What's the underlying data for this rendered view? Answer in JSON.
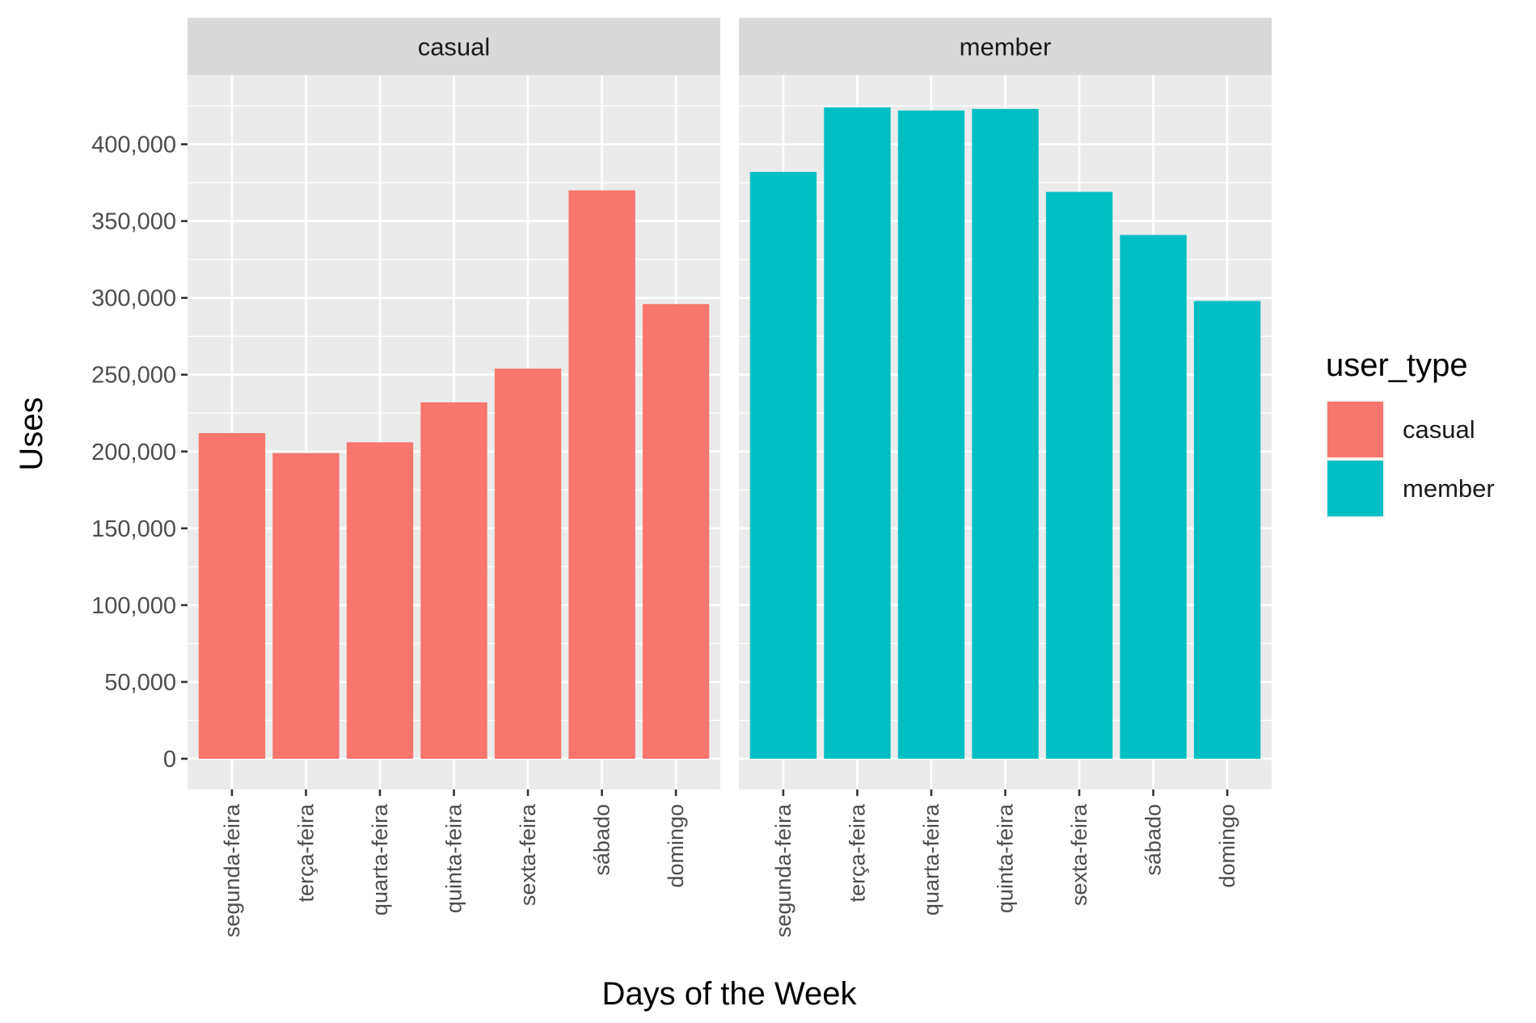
{
  "chart_data": {
    "type": "bar",
    "facets": [
      "casual",
      "member"
    ],
    "categories": [
      "segunda-feira",
      "terça-feira",
      "quarta-feira",
      "quinta-feira",
      "sexta-feira",
      "sábado",
      "domingo"
    ],
    "series": [
      {
        "name": "casual",
        "facet": "casual",
        "color": "#F8766D",
        "values": [
          212000,
          199000,
          206000,
          232000,
          254000,
          370000,
          296000
        ]
      },
      {
        "name": "member",
        "facet": "member",
        "color": "#00BFC4",
        "values": [
          382000,
          424000,
          422000,
          423000,
          369000,
          341000,
          298000
        ]
      }
    ],
    "xlabel": "Days of the Week",
    "ylabel": "Uses",
    "ylim": [
      -20000,
      445000
    ],
    "yticks": [
      0,
      50000,
      100000,
      150000,
      200000,
      250000,
      300000,
      350000,
      400000
    ],
    "ytick_labels": [
      "0",
      "50,000",
      "100,000",
      "150,000",
      "200,000",
      "250,000",
      "300,000",
      "350,000",
      "400,000"
    ],
    "grid": true,
    "legend": {
      "title": "user_type",
      "placement": "right",
      "entries": [
        {
          "label": "casual",
          "color": "#F8766D"
        },
        {
          "label": "member",
          "color": "#00BFC4"
        }
      ]
    },
    "panel_background": "#EBEBEB",
    "strip_background": "#D9D9D9",
    "gridline_color": "#FFFFFF"
  }
}
